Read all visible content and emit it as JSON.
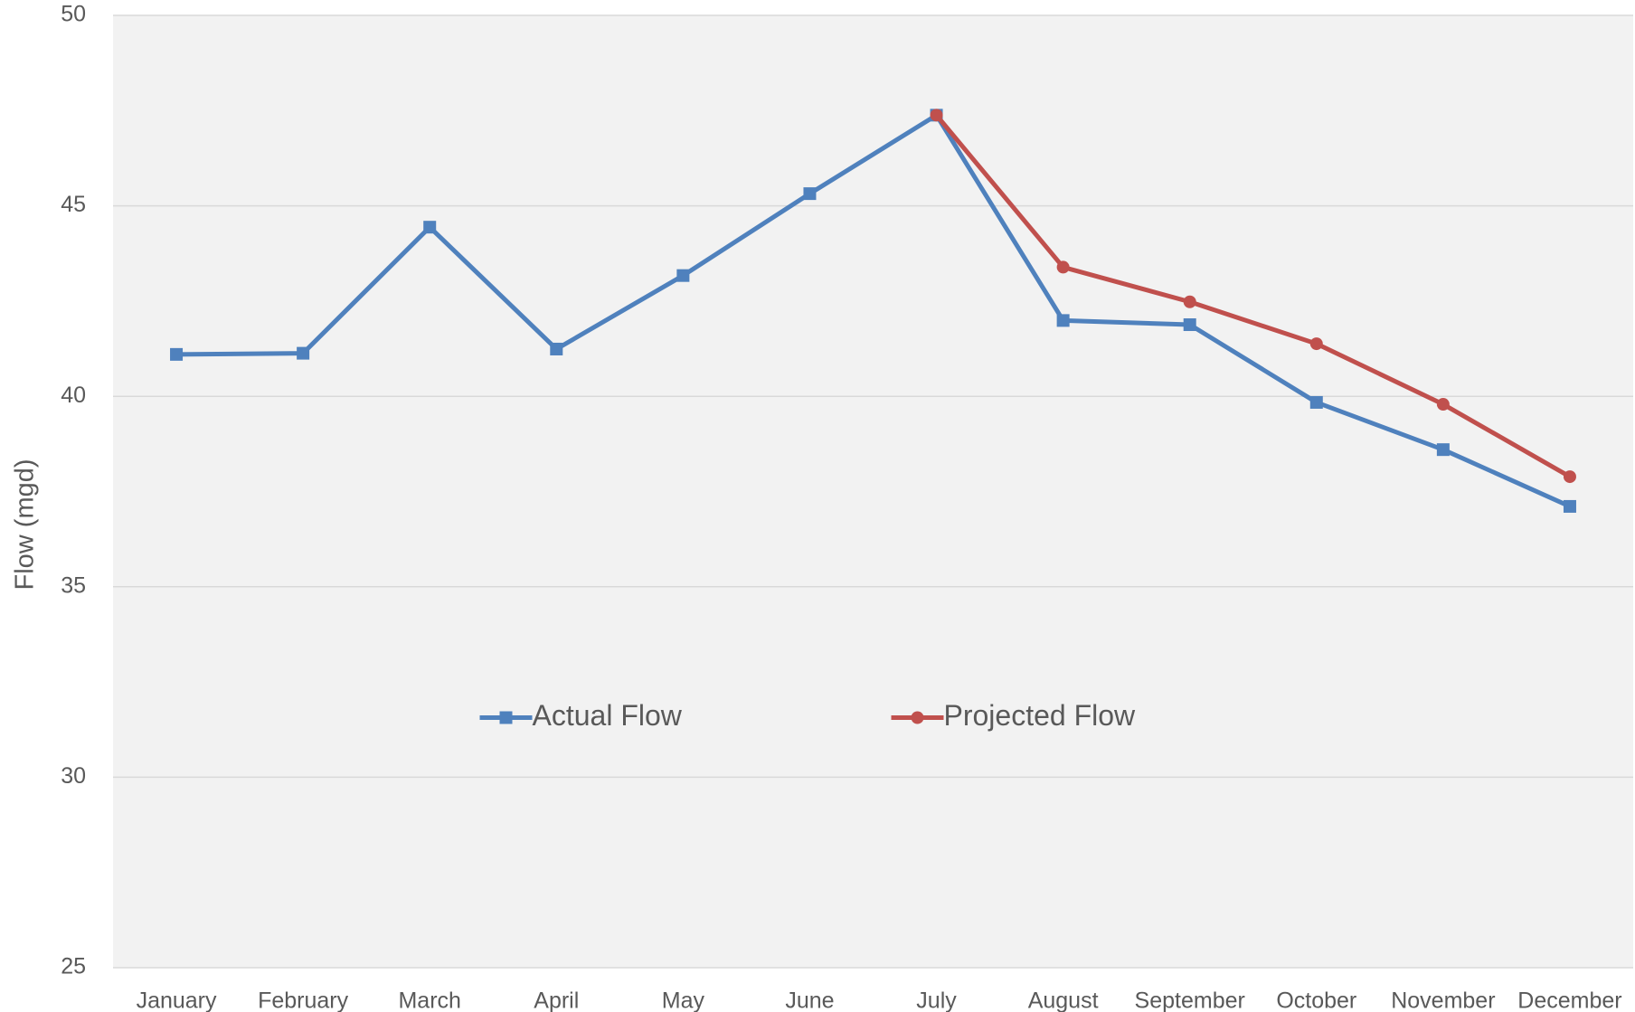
{
  "chart_data": {
    "type": "line",
    "y_label": "Flow (mgd)",
    "categories": [
      "January",
      "February",
      "March",
      "April",
      "May",
      "June",
      "July",
      "August",
      "September",
      "October",
      "November",
      "December"
    ],
    "series": [
      {
        "name": "Actual Flow",
        "color": "#4f81bd",
        "marker": "square",
        "values": [
          41.1,
          41.13,
          44.44,
          41.24,
          43.17,
          45.32,
          47.38,
          41.99,
          41.88,
          39.84,
          38.6,
          37.11
        ]
      },
      {
        "name": "Projected Flow",
        "color": "#c0504d",
        "marker": "circle",
        "values": [
          null,
          null,
          null,
          null,
          null,
          null,
          47.38,
          43.39,
          42.48,
          41.38,
          39.79,
          37.89
        ]
      }
    ],
    "ylim": [
      25,
      50
    ],
    "yticks": [
      25,
      30,
      35,
      40,
      45,
      50
    ],
    "grid": true,
    "legend": "center"
  }
}
